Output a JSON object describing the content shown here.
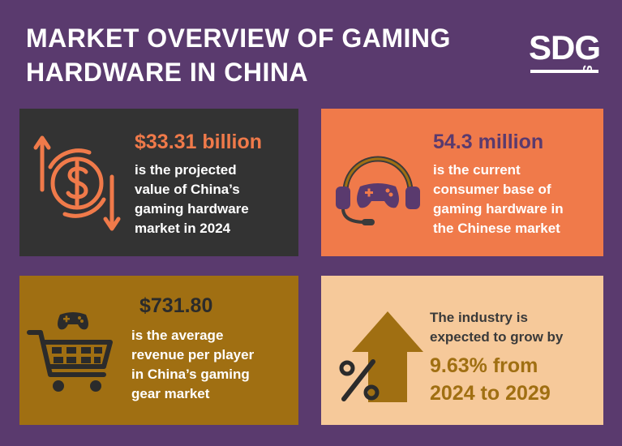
{
  "header": {
    "title_line1": "MARKET OVERVIEW OF GAMING",
    "title_line2": "HARDWARE IN CHINA",
    "logo_text": "SDG",
    "logo_sub": "S"
  },
  "cards": [
    {
      "headline": "$33.31 billion",
      "lines": [
        "is the projected",
        "value of China’s",
        "gaming hardware",
        "market in 2024"
      ],
      "icon": "dollar-cycle-icon"
    },
    {
      "headline": "54.3 million",
      "lines": [
        "is the current",
        "consumer base of",
        "gaming hardware in",
        "the Chinese market"
      ],
      "icon": "gaming-headset-icon"
    },
    {
      "headline": "$731.80",
      "lines": [
        "is the average",
        "revenue per player",
        "in China’s gaming",
        "gear market"
      ],
      "icon": "controller-cart-icon"
    },
    {
      "lines": [
        "The industry is",
        "expected to grow by"
      ],
      "headline_line1": "9.63% from",
      "headline_line2": "2024 to 2029",
      "icon": "growth-arrow-percent-icon"
    }
  ],
  "colors": {
    "background": "#5a3a6e",
    "dark_card": "#333333",
    "orange_card": "#f07a4a",
    "gold_card": "#a06f12",
    "peach_card": "#f6c99a"
  }
}
